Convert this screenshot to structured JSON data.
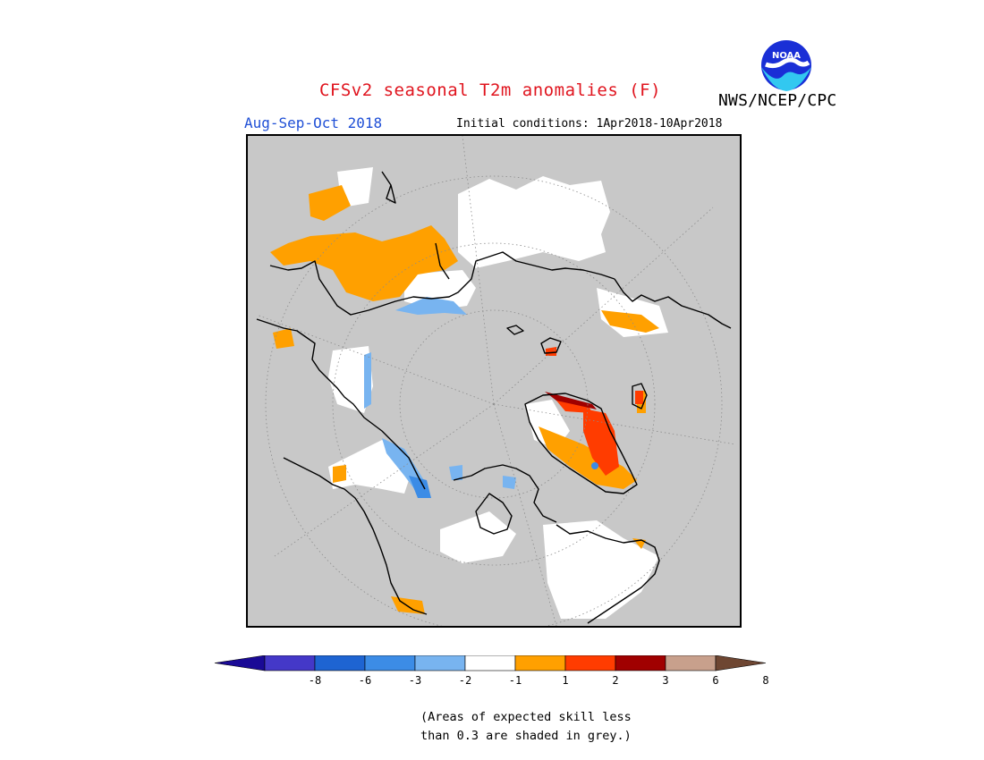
{
  "header": {
    "title": "CFSv2 seasonal T2m anomalies (F)",
    "agency": "NWS/NCEP/CPC",
    "logo_text": "NOAA",
    "season": "Aug-Sep-Oct 2018",
    "initial_conditions": "Initial conditions: 1Apr2018-10Apr2018"
  },
  "map": {
    "projection": "north-polar-stereographic",
    "skill_mask_color": "#c8c8c8",
    "coastline_color": "#000000"
  },
  "legend": {
    "labels": [
      "-8",
      "-6",
      "-3",
      "-2",
      "-1",
      "1",
      "2",
      "3",
      "6",
      "8"
    ],
    "colors": [
      "#1a0a96",
      "#4438c8",
      "#1e64d2",
      "#3c8ce6",
      "#78b4f0",
      "#ffffff",
      "#ffa000",
      "#ff3c00",
      "#a00000",
      "#c8a08c",
      "#6e4632"
    ]
  },
  "note": {
    "line1": "(Areas of expected skill less",
    "line2": "than 0.3 are shaded in grey.)"
  }
}
